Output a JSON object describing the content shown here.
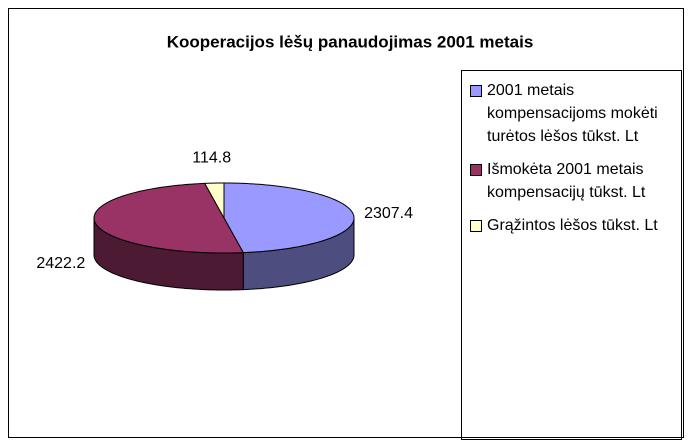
{
  "chart_data": {
    "type": "pie3d",
    "title": "Kooperacijos lėšų panaudojimas 2001 metais",
    "categories": [
      "2001 metais kompensacijoms mokėti turėtos lėšos tūkst. Lt",
      "Išmokėta 2001 metais kompensacijų tūkst. Lt",
      "Grąžintos lėšos tūkst. Lt"
    ],
    "values": [
      2307.4,
      2422.2,
      114.8
    ],
    "colors": [
      "#9999ff",
      "#993366",
      "#ffffcc"
    ],
    "legend": "right"
  }
}
